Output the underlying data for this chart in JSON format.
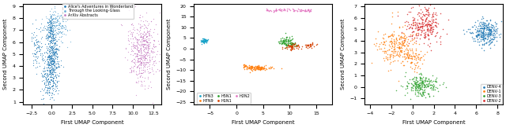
{
  "fig_width": 6.4,
  "fig_height": 1.63,
  "dpi": 100,
  "sp1": {
    "xlabel": "First UMAP Component",
    "ylabel": "Second UMAP Component",
    "xlim": [
      -3.5,
      13.5
    ],
    "ylim": [
      0.8,
      9.2
    ],
    "xticks": [
      -2.5,
      0.0,
      2.5,
      5.0,
      7.5,
      10.0,
      12.5
    ],
    "yticks": [
      1,
      2,
      3,
      4,
      5,
      6,
      7,
      8,
      9
    ],
    "legend_labels": [
      "Alice's Adventures in Wonderland",
      "Through the Looking-Glass",
      "ArXiv Abstracts"
    ],
    "legend_colors": [
      "#1f77b4",
      "#6baed6",
      "#c478c0"
    ]
  },
  "sp2": {
    "xlabel": "First UMAP Component",
    "ylabel": "Second UMAP Component",
    "xlim": [
      -8,
      18
    ],
    "ylim": [
      -26,
      21
    ],
    "xticks": [
      -5,
      0,
      5,
      10,
      15
    ],
    "yticks": [
      -25,
      -20,
      -15,
      -10,
      -5,
      0,
      5,
      10,
      15,
      20
    ],
    "legend_labels": [
      "H7N3",
      "H7N9",
      "H5N1",
      "H1N1",
      "H2N2"
    ],
    "legend_colors": [
      "#17a2c8",
      "#ff7f0e",
      "#2ca02c",
      "#d44000",
      "#e377c2"
    ]
  },
  "sp3": {
    "xlabel": "First UMAP Component",
    "ylabel": "Second UMAP Component",
    "xlim": [
      -4.5,
      8.5
    ],
    "ylim": [
      -1.5,
      7.2
    ],
    "xticks": [
      -4,
      -2,
      0,
      2,
      4,
      6,
      8
    ],
    "yticks": [
      -1,
      0,
      1,
      2,
      3,
      4,
      5,
      6,
      7
    ],
    "legend_labels": [
      "DENV-4",
      "DENV-1",
      "DENV-3",
      "DENV-2"
    ],
    "legend_colors": [
      "#1f77b4",
      "#ff7f0e",
      "#2ca02c",
      "#d62728"
    ]
  }
}
